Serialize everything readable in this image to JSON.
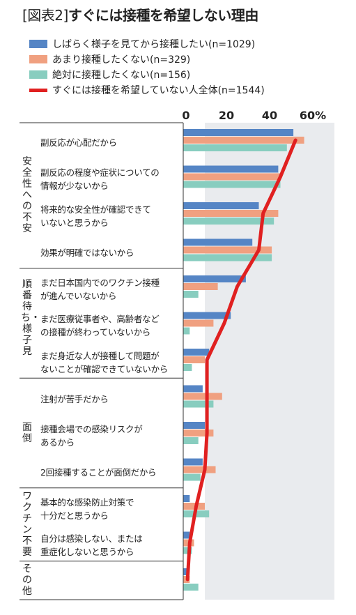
{
  "title_tag": "[図表2]",
  "title_main": "すぐには接種を希望しない理由",
  "chart_data": {
    "type": "bar",
    "orientation": "horizontal",
    "xlim": [
      0,
      70
    ],
    "ticks": [
      {
        "value": 0,
        "label": "0"
      },
      {
        "value": 20,
        "label": "20"
      },
      {
        "value": 40,
        "label": "40"
      },
      {
        "value": 60,
        "label": "60%"
      }
    ],
    "grid": "alternating-bands",
    "legend_position": "top",
    "categories": [
      "副反応が心配だから",
      "副反応の程度や症状についての\n情報が少ないから",
      "将来的な安全性が確認できて\nいないと思うから",
      "効果が明確ではないから",
      "まだ日本国内でのワクチン接種\nが進んでいないから",
      "まだ医療従事者や、高齢者など\nの接種が終わっていないから",
      "まだ身近な人が接種して問題が\nないことが確認できていないから",
      "注射が苦手だから",
      "接種会場での感染リスクが\nあるから",
      "2回接種することが面倒だから",
      "基本的な感染防止対策で\n十分だと思うから",
      "自分は感染しない、または\n重症化しないと思うから",
      ""
    ],
    "groups": [
      {
        "label": "安全性への不安",
        "start": 0,
        "end": 3
      },
      {
        "label": "順番待ち・様子見",
        "start": 4,
        "end": 6
      },
      {
        "label": "面倒",
        "start": 7,
        "end": 9
      },
      {
        "label": "ワクチン不要",
        "start": 10,
        "end": 11
      },
      {
        "label": "その他",
        "start": 12,
        "end": 12
      }
    ],
    "series": [
      {
        "name": "しばらく様子を見てから接種したい(n=1029)",
        "type": "bar",
        "color": "#5585c5",
        "values": [
          51,
          44,
          35,
          32,
          29,
          22,
          12,
          9,
          10,
          9,
          3,
          3,
          2
        ]
      },
      {
        "name": "あまり接種したくない(n=329)",
        "type": "bar",
        "color": "#f0a080",
        "values": [
          56,
          45,
          44,
          41,
          16,
          14,
          10,
          18,
          14,
          15,
          10,
          5,
          3
        ]
      },
      {
        "name": "絶対に接種したくない(n=156)",
        "type": "bar",
        "color": "#88cdbf",
        "values": [
          48,
          45,
          42,
          41,
          7,
          3,
          4,
          14,
          7,
          8,
          12,
          4,
          7
        ]
      },
      {
        "name": "すぐには接種を希望していない人全体(n=1544)",
        "type": "line",
        "color": "#e02020",
        "values": [
          52,
          45,
          37,
          35,
          25,
          19,
          11,
          11,
          11,
          10,
          6,
          3,
          2
        ]
      }
    ]
  }
}
